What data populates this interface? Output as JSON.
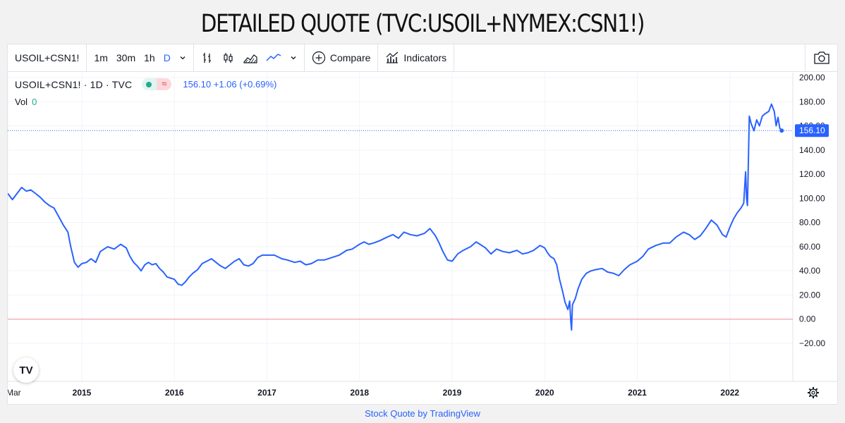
{
  "page": {
    "title": "DETAILED QUOTE (TVC:USOIL+NYMEX:CSN1!)",
    "footer_link": "Stock Quote by TradingView"
  },
  "toolbar": {
    "symbol": "USOIL+CSN1!",
    "intervals": [
      "1m",
      "30m",
      "1h",
      "D"
    ],
    "active_interval": "D",
    "compare_label": "Compare",
    "indicators_label": "Indicators"
  },
  "legend": {
    "symbol_text": "USOIL+CSN1! · 1D · TVC",
    "wave_glyph": "≈",
    "values_text": "156.10  +1.06 (+0.69%)",
    "vol_label": "Vol",
    "vol_value": "0"
  },
  "logo_text": "TV",
  "colors": {
    "line": "#2962ff",
    "price_badge": "#2962ff",
    "zero_line": "#f23645",
    "grid": "#f0f3fa",
    "positive": "#22ab94"
  },
  "chart_data": {
    "type": "line",
    "x_unit": "year",
    "xlim": [
      2014.2,
      2022.68
    ],
    "ylim": [
      -26,
      204
    ],
    "y_ticks": [
      200,
      180,
      160,
      140,
      120,
      100,
      80,
      60,
      40,
      20,
      0,
      -20
    ],
    "y_tick_labels": [
      "200.00",
      "180.00",
      "160.00",
      "140.00",
      "120.00",
      "100.00",
      "80.00",
      "60.00",
      "40.00",
      "20.00",
      "0.00",
      "−20.00"
    ],
    "x_tick_labels": [
      {
        "x": 2014.2,
        "label": "Mar"
      },
      {
        "x": 2015.0,
        "label": "2015"
      },
      {
        "x": 2016.0,
        "label": "2016"
      },
      {
        "x": 2017.0,
        "label": "2017"
      },
      {
        "x": 2018.0,
        "label": "2018"
      },
      {
        "x": 2019.0,
        "label": "2019"
      },
      {
        "x": 2020.0,
        "label": "2020"
      },
      {
        "x": 2021.0,
        "label": "2021"
      },
      {
        "x": 2022.0,
        "label": "2022"
      }
    ],
    "last_value": 156.1,
    "last_value_label": "156.10",
    "series": [
      {
        "points": [
          [
            2014.2,
            104
          ],
          [
            2014.25,
            99
          ],
          [
            2014.3,
            104
          ],
          [
            2014.35,
            109
          ],
          [
            2014.4,
            106
          ],
          [
            2014.45,
            107
          ],
          [
            2014.5,
            104
          ],
          [
            2014.55,
            101
          ],
          [
            2014.6,
            97
          ],
          [
            2014.65,
            94
          ],
          [
            2014.7,
            92
          ],
          [
            2014.75,
            85
          ],
          [
            2014.8,
            78
          ],
          [
            2014.85,
            72
          ],
          [
            2014.88,
            60
          ],
          [
            2014.92,
            47
          ],
          [
            2014.96,
            43
          ],
          [
            2015.0,
            46
          ],
          [
            2015.05,
            47
          ],
          [
            2015.1,
            50
          ],
          [
            2015.15,
            47
          ],
          [
            2015.2,
            56
          ],
          [
            2015.28,
            60
          ],
          [
            2015.35,
            58
          ],
          [
            2015.42,
            62
          ],
          [
            2015.48,
            59
          ],
          [
            2015.52,
            52
          ],
          [
            2015.56,
            47
          ],
          [
            2015.6,
            44
          ],
          [
            2015.64,
            40
          ],
          [
            2015.68,
            45
          ],
          [
            2015.72,
            47
          ],
          [
            2015.76,
            45
          ],
          [
            2015.8,
            46
          ],
          [
            2015.84,
            42
          ],
          [
            2015.88,
            39
          ],
          [
            2015.92,
            35
          ],
          [
            2015.96,
            34
          ],
          [
            2016.0,
            33
          ],
          [
            2016.04,
            29
          ],
          [
            2016.08,
            28
          ],
          [
            2016.12,
            31
          ],
          [
            2016.16,
            35
          ],
          [
            2016.2,
            38
          ],
          [
            2016.25,
            41
          ],
          [
            2016.3,
            46
          ],
          [
            2016.35,
            48
          ],
          [
            2016.4,
            50
          ],
          [
            2016.45,
            47
          ],
          [
            2016.5,
            44
          ],
          [
            2016.55,
            42
          ],
          [
            2016.6,
            45
          ],
          [
            2016.65,
            48
          ],
          [
            2016.7,
            50
          ],
          [
            2016.75,
            45
          ],
          [
            2016.8,
            44
          ],
          [
            2016.85,
            46
          ],
          [
            2016.9,
            51
          ],
          [
            2016.95,
            53
          ],
          [
            2017.0,
            53
          ],
          [
            2017.08,
            53
          ],
          [
            2017.16,
            50
          ],
          [
            2017.22,
            49
          ],
          [
            2017.3,
            47
          ],
          [
            2017.36,
            48
          ],
          [
            2017.42,
            45
          ],
          [
            2017.48,
            46
          ],
          [
            2017.55,
            49
          ],
          [
            2017.62,
            49
          ],
          [
            2017.7,
            51
          ],
          [
            2017.78,
            53
          ],
          [
            2017.86,
            57
          ],
          [
            2017.92,
            58
          ],
          [
            2018.0,
            62
          ],
          [
            2018.05,
            64
          ],
          [
            2018.1,
            62
          ],
          [
            2018.15,
            63
          ],
          [
            2018.22,
            65
          ],
          [
            2018.3,
            68
          ],
          [
            2018.36,
            70
          ],
          [
            2018.42,
            67
          ],
          [
            2018.48,
            72
          ],
          [
            2018.55,
            70
          ],
          [
            2018.62,
            69
          ],
          [
            2018.7,
            71
          ],
          [
            2018.76,
            75
          ],
          [
            2018.82,
            69
          ],
          [
            2018.86,
            63
          ],
          [
            2018.9,
            56
          ],
          [
            2018.95,
            49
          ],
          [
            2019.0,
            48
          ],
          [
            2019.06,
            54
          ],
          [
            2019.12,
            57
          ],
          [
            2019.2,
            60
          ],
          [
            2019.26,
            64
          ],
          [
            2019.3,
            62
          ],
          [
            2019.36,
            59
          ],
          [
            2019.42,
            54
          ],
          [
            2019.48,
            58
          ],
          [
            2019.55,
            56
          ],
          [
            2019.62,
            55
          ],
          [
            2019.7,
            57
          ],
          [
            2019.76,
            54
          ],
          [
            2019.82,
            55
          ],
          [
            2019.88,
            57
          ],
          [
            2019.95,
            61
          ],
          [
            2020.0,
            59
          ],
          [
            2020.03,
            55
          ],
          [
            2020.06,
            52
          ],
          [
            2020.1,
            50
          ],
          [
            2020.13,
            45
          ],
          [
            2020.16,
            33
          ],
          [
            2020.19,
            24
          ],
          [
            2020.22,
            14
          ],
          [
            2020.25,
            8
          ],
          [
            2020.27,
            15
          ],
          [
            2020.28,
            0
          ],
          [
            2020.29,
            -9
          ],
          [
            2020.3,
            12
          ],
          [
            2020.33,
            17
          ],
          [
            2020.36,
            25
          ],
          [
            2020.4,
            33
          ],
          [
            2020.45,
            38
          ],
          [
            2020.5,
            40
          ],
          [
            2020.55,
            41
          ],
          [
            2020.62,
            42
          ],
          [
            2020.68,
            39
          ],
          [
            2020.74,
            38
          ],
          [
            2020.8,
            36
          ],
          [
            2020.86,
            41
          ],
          [
            2020.92,
            45
          ],
          [
            2021.0,
            48
          ],
          [
            2021.06,
            52
          ],
          [
            2021.12,
            58
          ],
          [
            2021.2,
            61
          ],
          [
            2021.28,
            63
          ],
          [
            2021.35,
            63
          ],
          [
            2021.42,
            68
          ],
          [
            2021.5,
            72
          ],
          [
            2021.56,
            70
          ],
          [
            2021.62,
            66
          ],
          [
            2021.68,
            69
          ],
          [
            2021.74,
            75
          ],
          [
            2021.8,
            82
          ],
          [
            2021.86,
            78
          ],
          [
            2021.92,
            70
          ],
          [
            2021.96,
            68
          ],
          [
            2022.0,
            76
          ],
          [
            2022.04,
            83
          ],
          [
            2022.08,
            88
          ],
          [
            2022.12,
            92
          ],
          [
            2022.15,
            96
          ],
          [
            2022.17,
            122
          ],
          [
            2022.18,
            100
          ],
          [
            2022.19,
            94
          ],
          [
            2022.2,
            130
          ],
          [
            2022.21,
            168
          ],
          [
            2022.23,
            162
          ],
          [
            2022.26,
            156
          ],
          [
            2022.29,
            165
          ],
          [
            2022.32,
            160
          ],
          [
            2022.35,
            168
          ],
          [
            2022.38,
            170
          ],
          [
            2022.42,
            172
          ],
          [
            2022.45,
            178
          ],
          [
            2022.48,
            172
          ],
          [
            2022.5,
            160
          ],
          [
            2022.52,
            167
          ],
          [
            2022.54,
            158
          ],
          [
            2022.56,
            156.1
          ]
        ]
      }
    ]
  }
}
